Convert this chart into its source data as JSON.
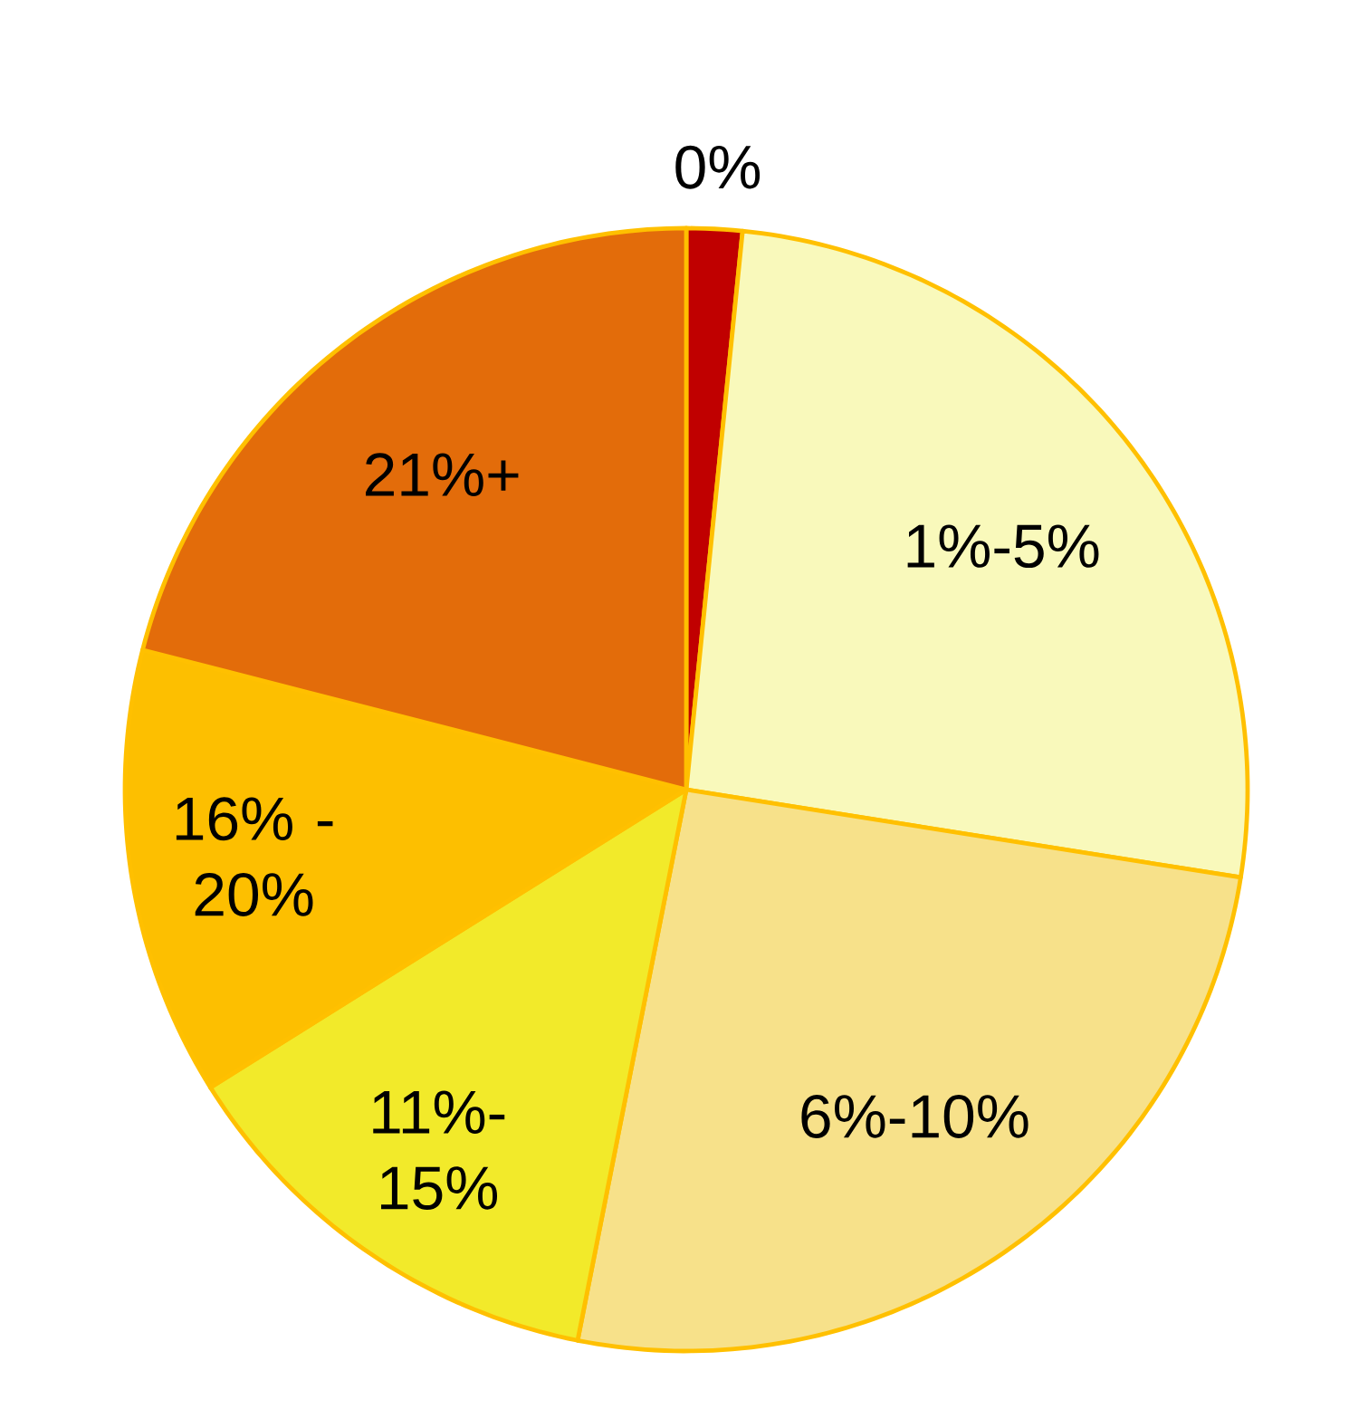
{
  "chart_data": {
    "type": "pie",
    "categories": [
      "0%",
      "1%-5%",
      "6%-10%",
      "11%-15%",
      "16% - 20%",
      "21%+"
    ],
    "values": [
      1.6,
      25.9,
      25.6,
      13.0,
      12.9,
      21.0
    ],
    "colors": [
      "#c00000",
      "#f9f9bb",
      "#f7e18a",
      "#f2ea2a",
      "#fdbf00",
      "#e36c0a"
    ]
  }
}
